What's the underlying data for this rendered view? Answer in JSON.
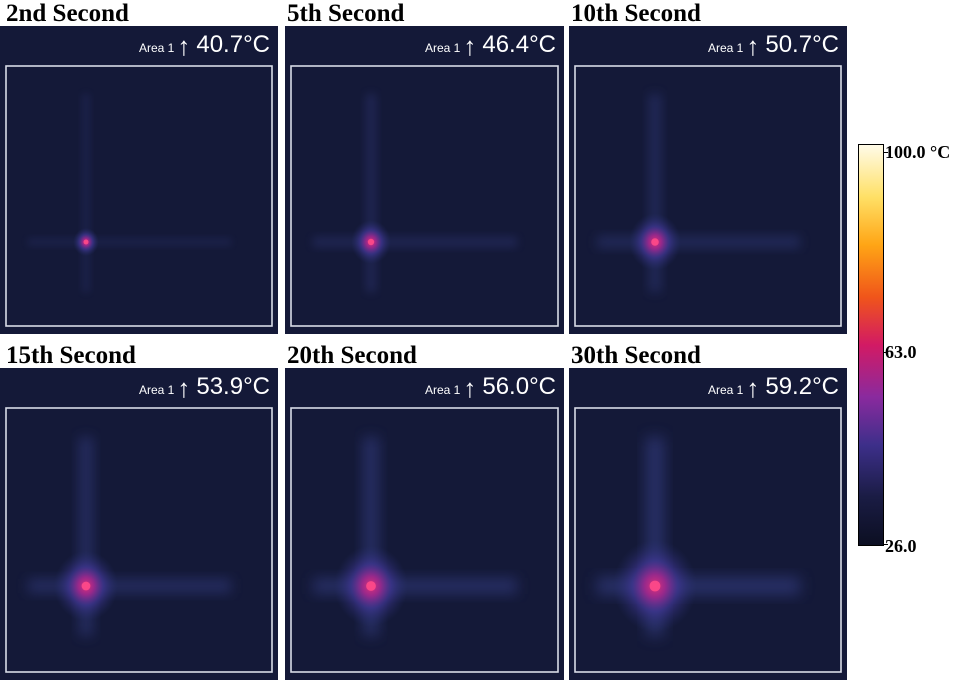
{
  "panels": [
    {
      "title": "2nd Second",
      "area_label": "Area 1",
      "max_temp": "40.7°C",
      "hotspot_intensity": 0.12
    },
    {
      "title": "5th Second",
      "area_label": "Area 1",
      "max_temp": "46.4°C",
      "hotspot_intensity": 0.3
    },
    {
      "title": "10th Second",
      "area_label": "Area 1",
      "max_temp": "50.7°C",
      "hotspot_intensity": 0.45
    },
    {
      "title": "15th Second",
      "area_label": "Area 1",
      "max_temp": "53.9°C",
      "hotspot_intensity": 0.6
    },
    {
      "title": "20th Second",
      "area_label": "Area 1",
      "max_temp": "56.0°C",
      "hotspot_intensity": 0.72
    },
    {
      "title": "30th Second",
      "area_label": "Area 1",
      "max_temp": "59.2°C",
      "hotspot_intensity": 0.85
    }
  ],
  "colorbar": {
    "max_label": "100.0 °C",
    "mid_label": "63.0",
    "min_label": "26.0",
    "max": 100.0,
    "mid": 63.0,
    "min": 26.0,
    "colors": [
      "#fffbe8",
      "#ffe066",
      "#ffa515",
      "#f0551a",
      "#d21a64",
      "#8a2a9e",
      "#3d2f8a",
      "#1a1c44",
      "#0c0f22"
    ]
  },
  "colors": {
    "background": "#141938",
    "frame": "#d8dbe6",
    "readout_text": "#ffffff"
  }
}
